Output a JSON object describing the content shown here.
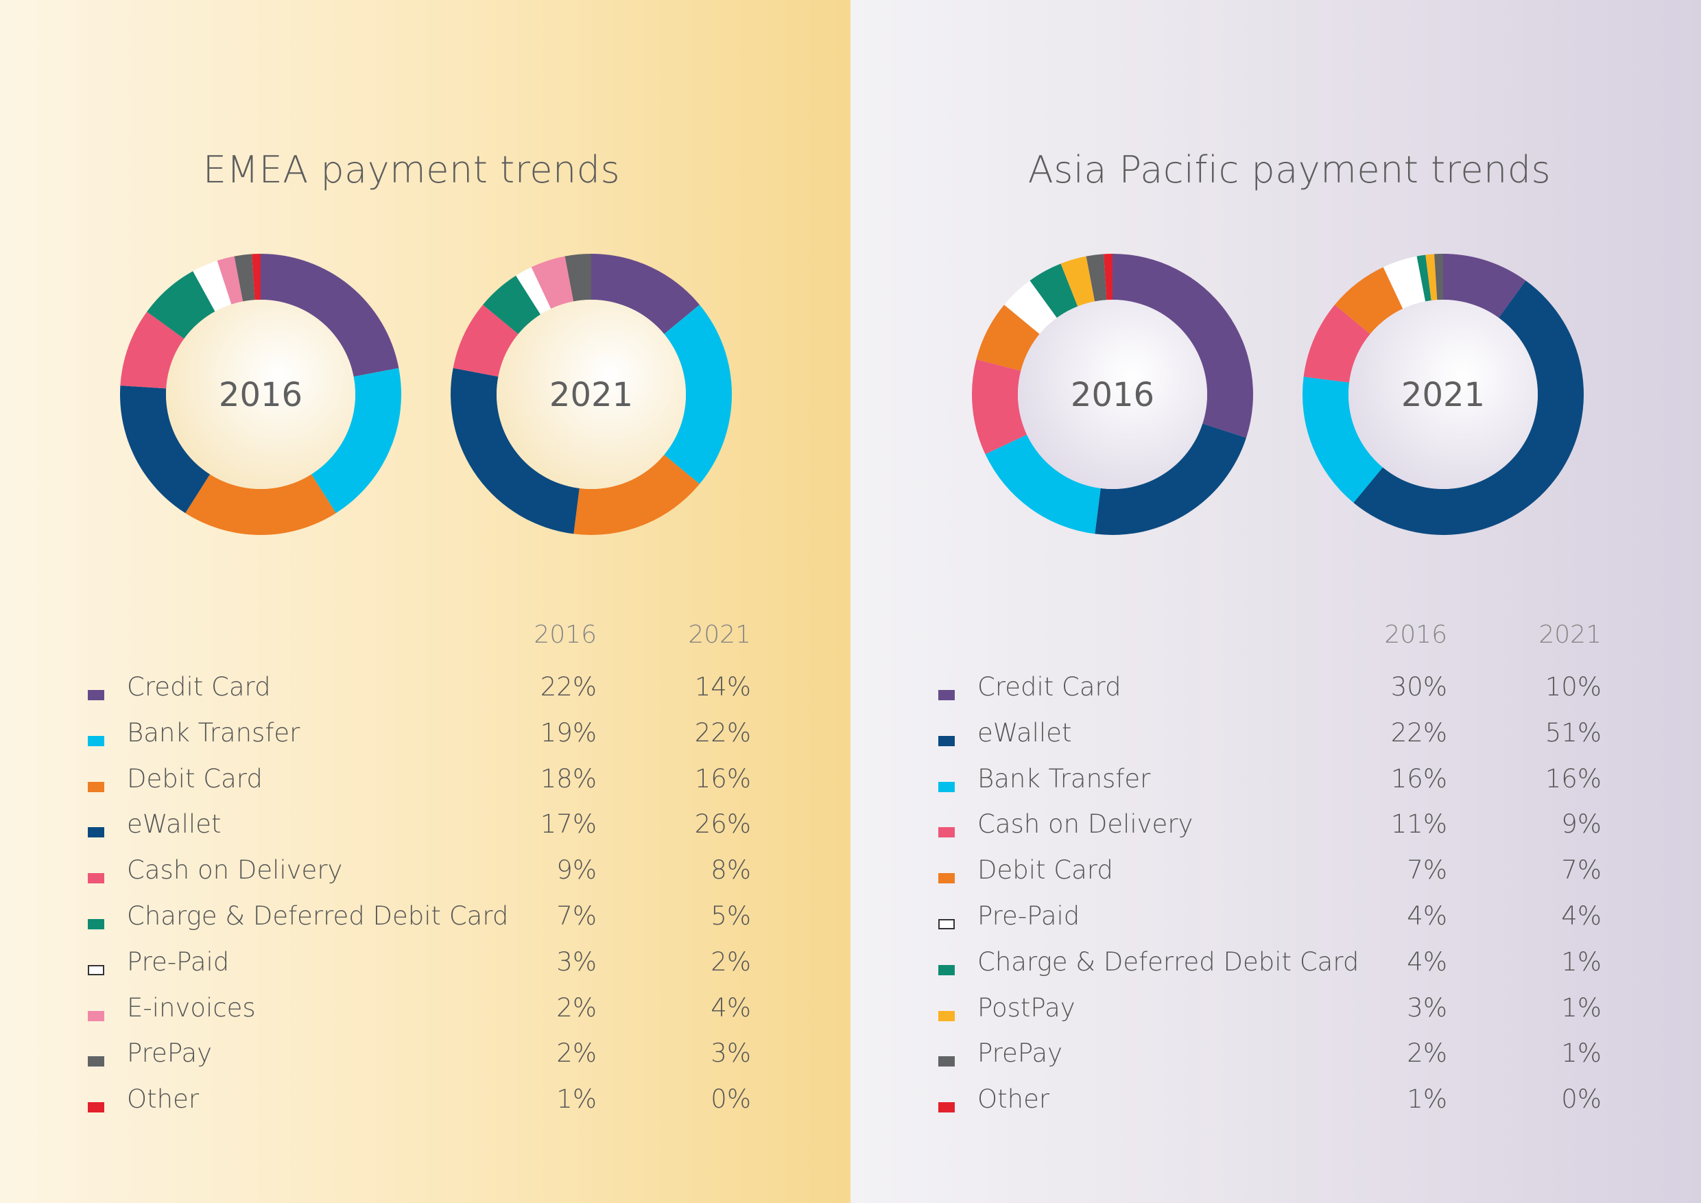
{
  "chart_data": [
    {
      "type": "pie",
      "title": "EMEA payment trends",
      "series_names": [
        "2016",
        "2021"
      ],
      "columns": [
        "2016",
        "2021"
      ],
      "categories": [
        {
          "label": "Credit Card",
          "color": "#664b8b",
          "v2016": 22,
          "v2021": 14,
          "t2016": "22%",
          "t2021": "14%"
        },
        {
          "label": "Bank Transfer",
          "color": "#00bfec",
          "v2016": 19,
          "v2021": 22,
          "t2016": "19%",
          "t2021": "22%"
        },
        {
          "label": "Debit Card",
          "color": "#ef7d22",
          "v2016": 18,
          "v2021": 16,
          "t2016": "18%",
          "t2021": "16%"
        },
        {
          "label": "eWallet",
          "color": "#0b4a80",
          "v2016": 17,
          "v2021": 26,
          "t2016": "17%",
          "t2021": "26%"
        },
        {
          "label": "Cash on Delivery",
          "color": "#ed5677",
          "v2016": 9,
          "v2021": 8,
          "t2016": "9%",
          "t2021": "8%"
        },
        {
          "label": "Charge & Deferred Debit Card",
          "color": "#0f8b72",
          "v2016": 7,
          "v2021": 5,
          "t2016": "7%",
          "t2021": "5%"
        },
        {
          "label": "Pre-Paid",
          "color": "#ffffff",
          "hollow": true,
          "v2016": 3,
          "v2021": 2,
          "t2016": "3%",
          "t2021": "2%"
        },
        {
          "label": "E-invoices",
          "color": "#f088a8",
          "v2016": 2,
          "v2021": 4,
          "t2016": "2%",
          "t2021": "4%"
        },
        {
          "label": "PrePay",
          "color": "#616365",
          "v2016": 2,
          "v2021": 3,
          "t2016": "2%",
          "t2021": "3%"
        },
        {
          "label": "Other",
          "color": "#e3212c",
          "v2016": 1,
          "v2021": 0,
          "t2016": "1%",
          "t2021": "0%"
        }
      ]
    },
    {
      "type": "pie",
      "title": "Asia Pacific payment trends",
      "series_names": [
        "2016",
        "2021"
      ],
      "columns": [
        "2016",
        "2021"
      ],
      "categories": [
        {
          "label": "Credit Card",
          "color": "#664b8b",
          "v2016": 30,
          "v2021": 10,
          "t2016": "30%",
          "t2021": "10%"
        },
        {
          "label": "eWallet",
          "color": "#0b4a80",
          "v2016": 22,
          "v2021": 51,
          "t2016": "22%",
          "t2021": "51%"
        },
        {
          "label": "Bank Transfer",
          "color": "#00bfec",
          "v2016": 16,
          "v2021": 16,
          "t2016": "16%",
          "t2021": "16%"
        },
        {
          "label": "Cash on Delivery",
          "color": "#ed5677",
          "v2016": 11,
          "v2021": 9,
          "t2016": "11%",
          "t2021": "9%"
        },
        {
          "label": "Debit Card",
          "color": "#ef7d22",
          "v2016": 7,
          "v2021": 7,
          "t2016": "7%",
          "t2021": "7%"
        },
        {
          "label": "Pre-Paid",
          "color": "#ffffff",
          "hollow": true,
          "v2016": 4,
          "v2021": 4,
          "t2016": "4%",
          "t2021": "4%"
        },
        {
          "label": "Charge & Deferred Debit Card",
          "color": "#0f8b72",
          "v2016": 4,
          "v2021": 1,
          "t2016": "4%",
          "t2021": "1%"
        },
        {
          "label": "PostPay",
          "color": "#f9b224",
          "v2016": 3,
          "v2021": 1,
          "t2016": "3%",
          "t2021": "1%"
        },
        {
          "label": "PrePay",
          "color": "#616365",
          "v2016": 2,
          "v2021": 1,
          "t2016": "2%",
          "t2021": "1%"
        },
        {
          "label": "Other",
          "color": "#e3212c",
          "v2016": 1,
          "v2021": 0,
          "t2016": "1%",
          "t2021": "0%"
        }
      ]
    }
  ]
}
